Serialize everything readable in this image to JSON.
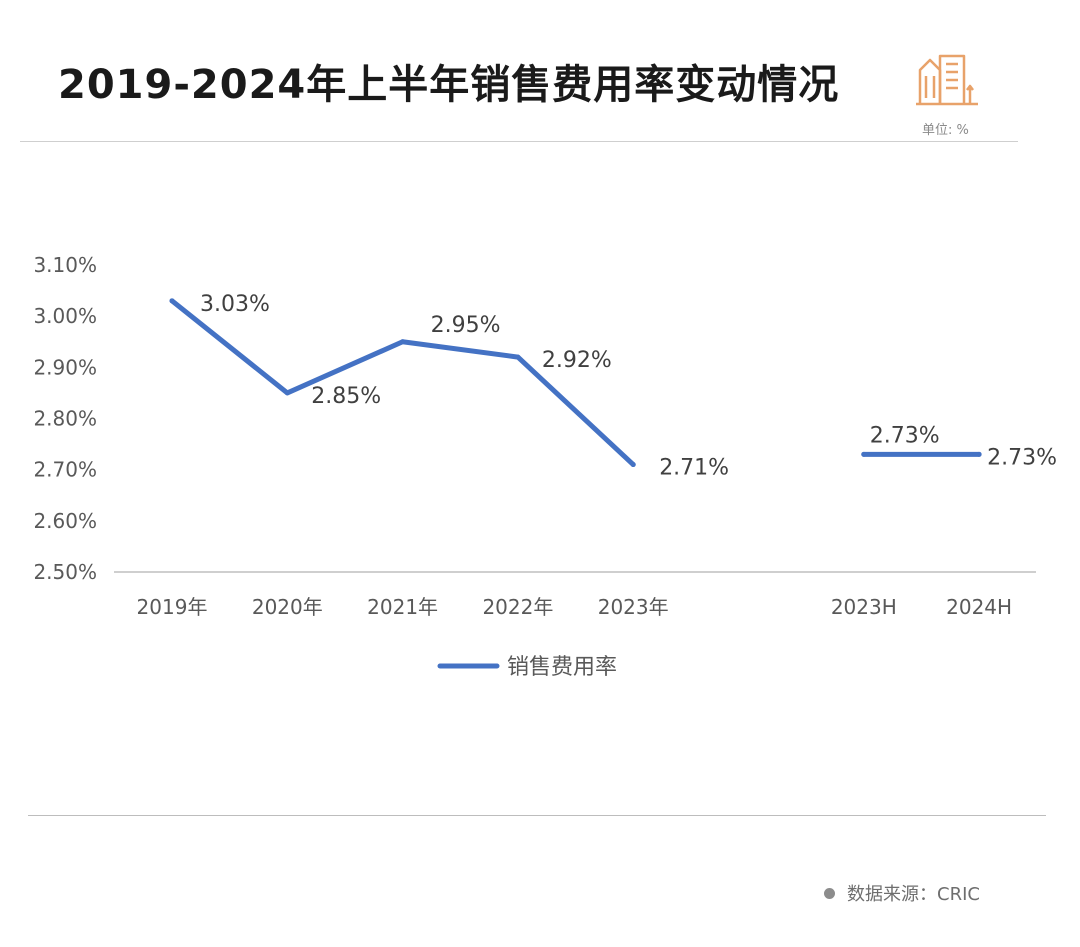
{
  "header": {
    "title": "2019-2024年上半年销售费用率变动情况",
    "unit": "单位: %",
    "logo_icon": "building-icon"
  },
  "footer": {
    "source": "数据来源：CRIC"
  },
  "colors": {
    "line": "#4472C4",
    "axis": "#bfbfbf",
    "logo": "#E8A26A"
  },
  "chart_data": {
    "type": "line",
    "categories": [
      "2019年",
      "2020年",
      "2021年",
      "2022年",
      "2023年",
      "",
      "2023H",
      "2024H"
    ],
    "series": [
      {
        "name": "销售费用率",
        "values": [
          3.03,
          2.85,
          2.95,
          2.92,
          2.71,
          null,
          2.73,
          2.73
        ],
        "labels": [
          "3.03%",
          "2.85%",
          "2.95%",
          "2.92%",
          "2.71%",
          "",
          "2.73%",
          "2.73%"
        ]
      }
    ],
    "y_ticks": [
      "3.10%",
      "3.00%",
      "2.90%",
      "2.80%",
      "2.70%",
      "2.60%",
      "2.50%"
    ],
    "ylim": [
      2.5,
      3.1
    ],
    "grid": false,
    "legend": "bottom"
  }
}
